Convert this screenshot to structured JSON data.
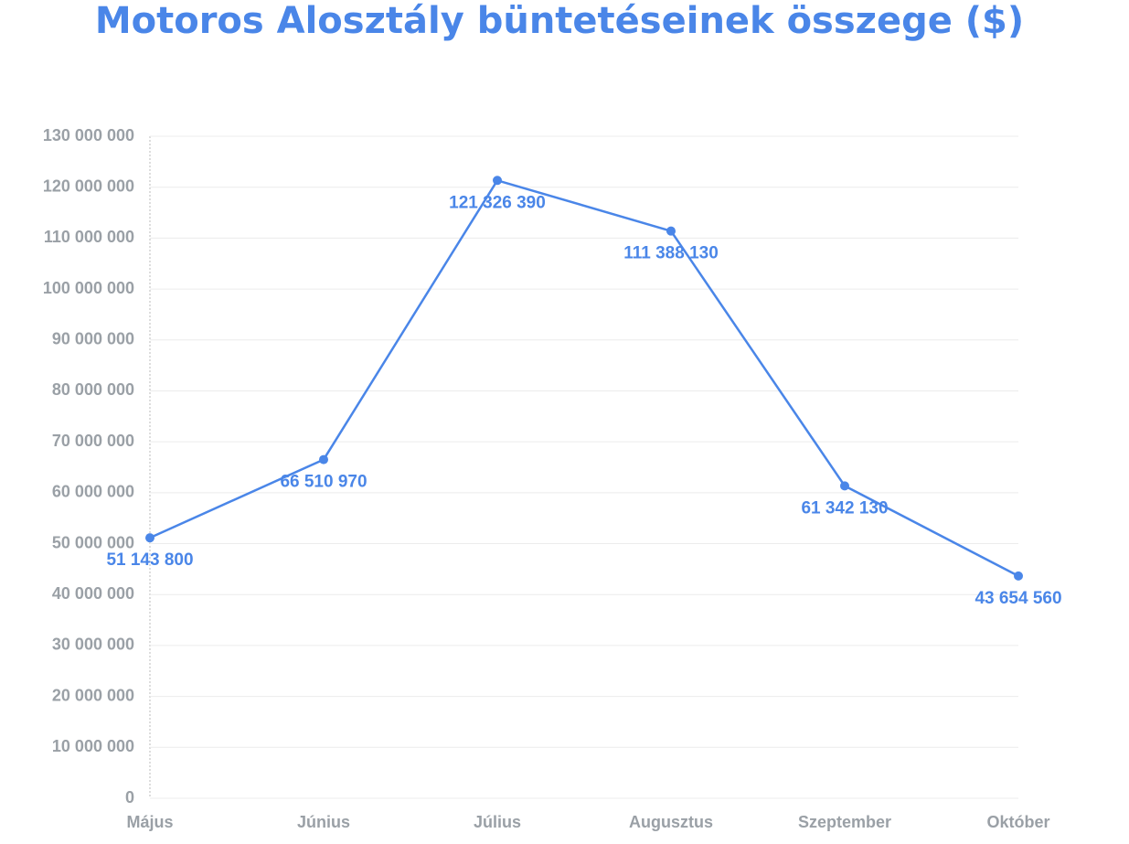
{
  "chart_data": {
    "type": "line",
    "title": "Motoros Alosztály büntetéseinek összege ($)",
    "categories": [
      "Május",
      "Június",
      "Július",
      "Augusztus",
      "Szeptember",
      "Október"
    ],
    "series": [
      {
        "color": "#4a86e8",
        "values": [
          51143800,
          66510970,
          121326390,
          111388130,
          61342130,
          43654560
        ],
        "value_labels": [
          "51 143 800",
          "66 510 970",
          "121 326 390",
          "111 388 130",
          "61 342 130",
          "43 654 560"
        ]
      }
    ],
    "ylim": [
      0,
      130000000
    ],
    "yticks": [
      0,
      {
        "value": 10000000,
        "label": "10 000 000"
      },
      {
        "value": 20000000,
        "label": "20 000 000"
      },
      {
        "value": 30000000,
        "label": "30 000 000"
      },
      {
        "value": 40000000,
        "label": "40 000 000"
      },
      {
        "value": 50000000,
        "label": "50 000 000"
      },
      {
        "value": 60000000,
        "label": "60 000 000"
      },
      {
        "value": 70000000,
        "label": "70 000 000"
      },
      {
        "value": 80000000,
        "label": "80 000 000"
      },
      {
        "value": 90000000,
        "label": "90 000 000"
      },
      {
        "value": 100000000,
        "label": "100 000 000"
      },
      {
        "value": 110000000,
        "label": "110 000 000"
      },
      {
        "value": 120000000,
        "label": "120 000 000"
      },
      {
        "value": 130000000,
        "label": "130 000 000"
      }
    ],
    "grid": true
  }
}
